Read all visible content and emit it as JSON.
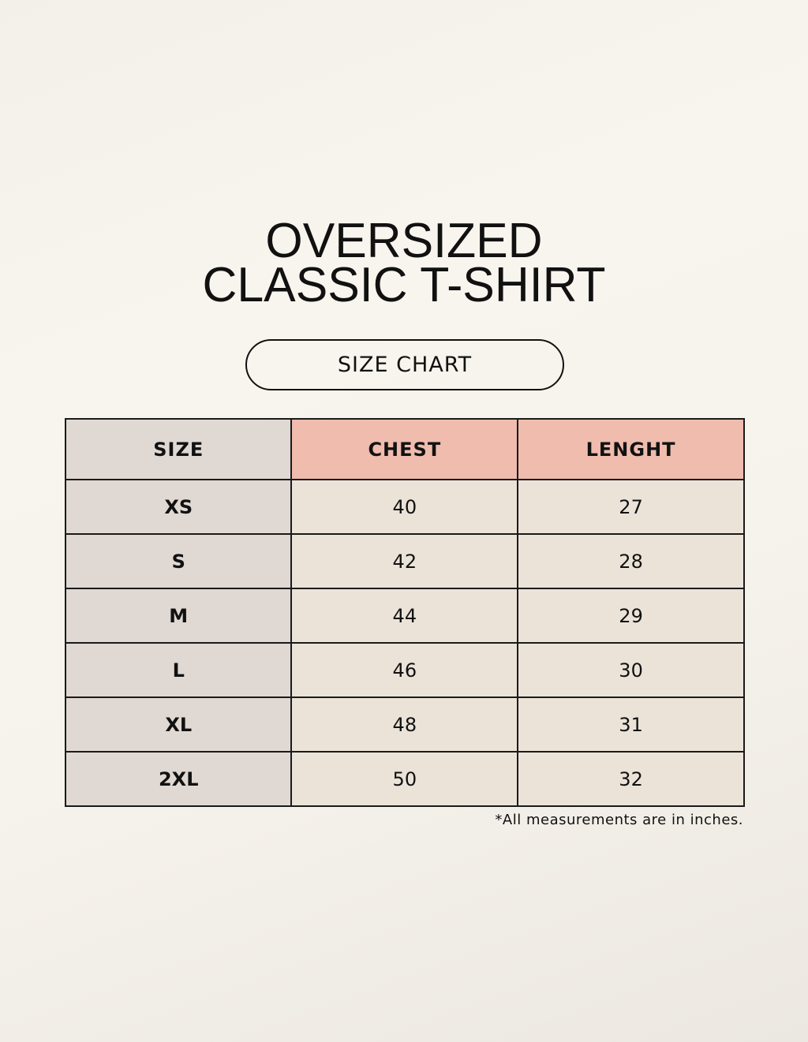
{
  "title": {
    "line1": "OVERSIZED",
    "line2": "CLASSIC T-SHIRT"
  },
  "subtitle": "SIZE CHART",
  "colors": {
    "size_column": "#e0d8d3",
    "header_accent": "#efbcae",
    "data_cells": "#ebe3d8",
    "background": "#f7f4ee"
  },
  "table": {
    "headers": [
      "SIZE",
      "CHEST",
      "LENGHT"
    ],
    "rows": [
      [
        "XS",
        "40",
        "27"
      ],
      [
        "S",
        "42",
        "28"
      ],
      [
        "M",
        "44",
        "29"
      ],
      [
        "L",
        "46",
        "30"
      ],
      [
        "XL",
        "48",
        "31"
      ],
      [
        "2XL",
        "50",
        "32"
      ]
    ]
  },
  "note": "*All measurements are in inches."
}
